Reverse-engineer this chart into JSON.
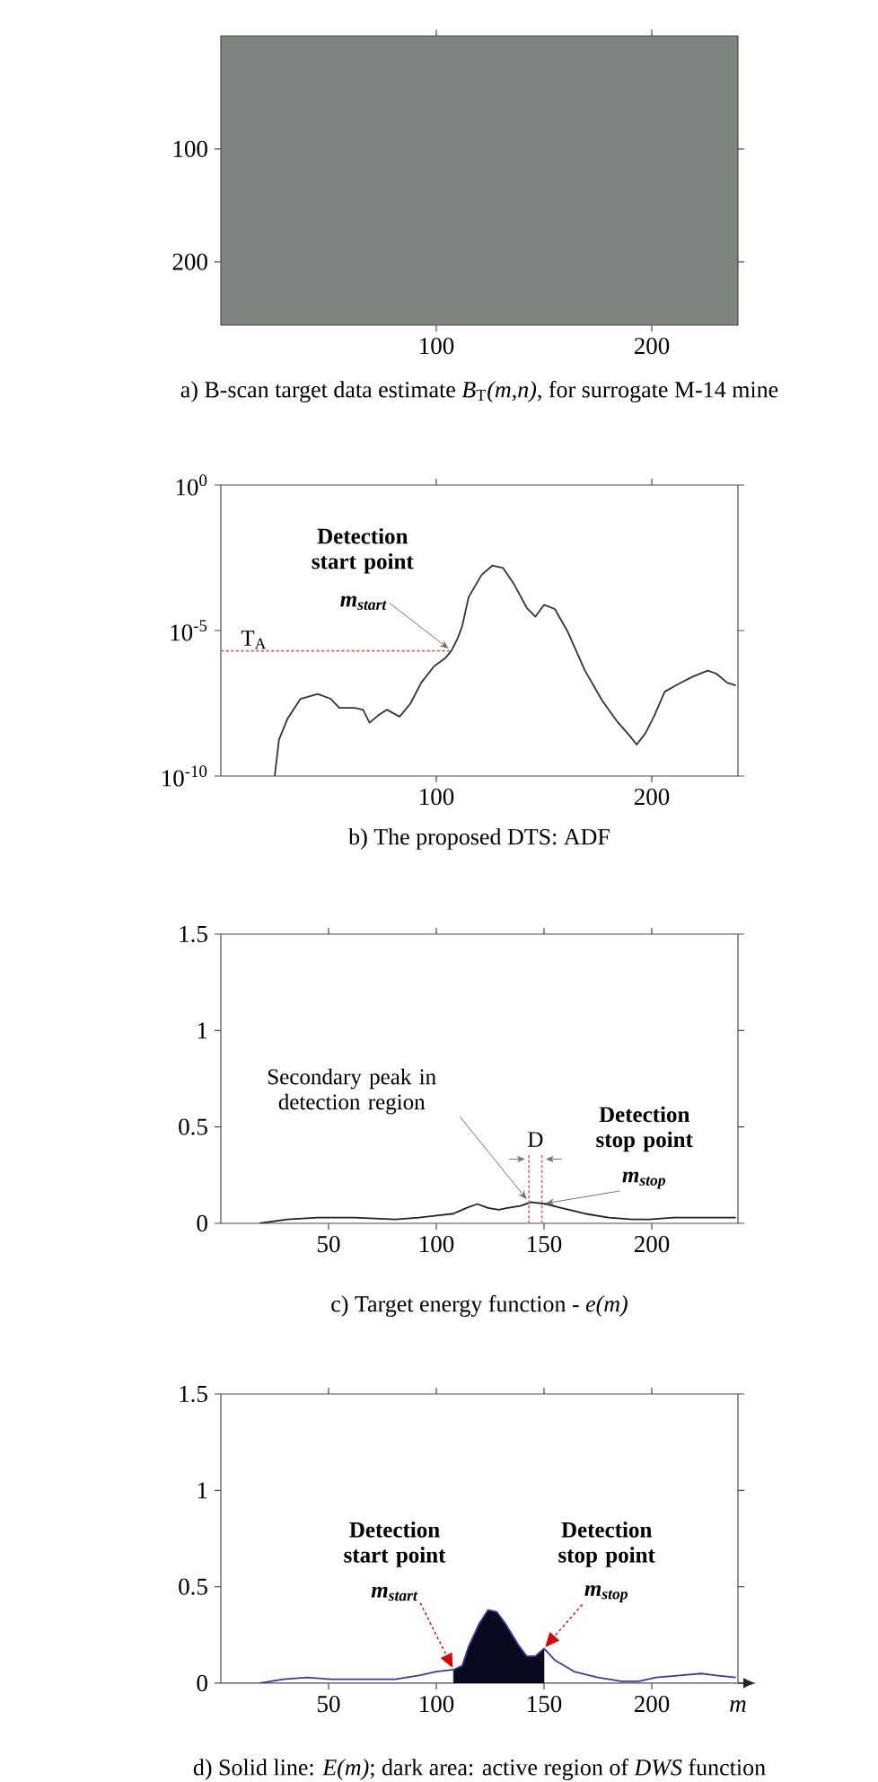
{
  "chart_data": [
    {
      "type": "line",
      "title": "a) B-scan target data estimate *B*$_{T}$*(m,n)*, for surrogate M-14 mine",
      "xlim": [
        0,
        240
      ],
      "ylim": [
        256,
        0
      ],
      "xticks": [
        100,
        200
      ],
      "yticks": [
        100,
        200
      ]
    },
    {
      "type": "line",
      "title": "b) The proposed DTS: ADF",
      "log": "y",
      "xlim": [
        0,
        240
      ],
      "ylim": [
        1e-10,
        1
      ],
      "xticks": [
        100,
        200
      ],
      "yticks": [
        {
          "value": 1,
          "label": "10$^{0}$"
        },
        {
          "value": 1e-05,
          "label": "10$^{-5}$"
        },
        {
          "value": 1e-10,
          "label": "10$^{-10}$"
        }
      ],
      "series": [
        {
          "color": "#333333",
          "x": [
            25,
            27,
            31,
            37,
            45,
            51,
            55,
            62,
            66,
            69,
            73,
            77,
            83,
            88,
            93,
            99,
            104,
            107,
            110,
            112,
            115,
            121,
            126,
            131,
            136,
            142,
            146,
            150,
            155,
            161,
            169,
            177,
            184,
            190,
            193,
            197,
            201,
            206,
            212,
            219,
            226,
            230,
            235,
            239
          ],
          "values": [
            1e-10,
            1.8e-09,
            9.5e-09,
            4.5e-08,
            6.6e-08,
            4.5e-08,
            2.2e-08,
            2.2e-08,
            1.9e-08,
            6.8e-09,
            1.2e-08,
            1.9e-08,
            1.1e-08,
            3.1e-08,
            1.6e-07,
            5.9e-07,
            1.1e-06,
            2e-06,
            5.6e-06,
            1.4e-05,
            0.00014,
            0.00081,
            0.0017,
            0.0014,
            0.0004,
            6e-05,
            3e-05,
            7.6e-05,
            5.5e-05,
            9.1e-06,
            4.2e-07,
            3.9e-08,
            7.4e-09,
            2.3e-09,
            1.2e-09,
            2.9e-09,
            1.1e-08,
            7.9e-08,
            1.4e-07,
            2.6e-07,
            4.2e-07,
            3.3e-07,
            1.6e-07,
            1.3e-07
          ]
        },
        {
          "name": "T$_{A}$",
          "color": "#cc6666",
          "line_style": "dotted",
          "x": [
            0,
            107
          ],
          "values": [
            2e-06,
            2e-06
          ]
        }
      ],
      "annotations": [
        "Detection start point",
        {
          "text": "m$_{start}$",
          "x": 107,
          "y": 2e-06
        }
      ]
    },
    {
      "type": "line",
      "title": "c) Target energy function - *e(m)*",
      "xlim": [
        0,
        240
      ],
      "ylim": [
        0,
        1.5
      ],
      "xticks": [
        50,
        100,
        150,
        200
      ],
      "yticks": [
        0,
        0.5,
        1,
        1.5
      ],
      "series": [
        {
          "color": "#222222",
          "x": [
            18,
            31,
            45,
            62,
            81,
            92,
            100,
            108,
            114,
            119,
            124,
            129,
            133,
            139,
            144,
            151,
            158,
            169,
            180,
            191,
            199,
            210,
            222,
            239
          ],
          "values": [
            0,
            0.02,
            0.03,
            0.03,
            0.02,
            0.03,
            0.04,
            0.05,
            0.08,
            0.1,
            0.08,
            0.07,
            0.08,
            0.09,
            0.11,
            0.1,
            0.08,
            0.05,
            0.03,
            0.02,
            0.02,
            0.03,
            0.03,
            0.03
          ]
        }
      ],
      "ref_lines": [
        {
          "axis": "x",
          "value": 143,
          "color": "#d46a6a",
          "line_style": "dotted"
        },
        {
          "axis": "x",
          "value": 149,
          "color": "#d46a6a",
          "line_style": "dotted"
        }
      ],
      "annotations": [
        {
          "text": "Secondary peak in detection region",
          "x": 143,
          "y": 0.11
        },
        "D",
        "Detection stop point",
        {
          "text": "m$_{stop}$",
          "x": 149,
          "y": 0.1
        }
      ]
    },
    {
      "type": "line",
      "title": "d) Solid line: *E(m)*; dark area: active region of *DWS* function",
      "xlabel": "m",
      "xlim": [
        0,
        240
      ],
      "ylim": [
        0,
        1.5
      ],
      "xticks": [
        50,
        100,
        150,
        200
      ],
      "yticks": [
        0,
        0.5,
        1,
        1.5
      ],
      "series": [
        {
          "type": "area",
          "color": "#0a0a1e",
          "x": [
            108,
            112,
            115,
            120,
            124,
            128,
            132,
            138,
            142,
            146,
            150
          ],
          "values": [
            0.07,
            0.09,
            0.19,
            0.31,
            0.38,
            0.37,
            0.31,
            0.2,
            0.14,
            0.14,
            0.18
          ]
        },
        {
          "color": "#3b3b9e",
          "x": [
            18,
            29,
            40,
            51,
            65,
            81,
            92,
            100,
            108,
            112,
            115,
            120,
            124,
            128,
            132,
            138,
            142,
            146,
            150,
            155,
            164,
            175,
            186,
            194,
            202,
            213,
            223,
            230,
            239
          ],
          "values": [
            0,
            0.02,
            0.03,
            0.02,
            0.02,
            0.02,
            0.04,
            0.06,
            0.07,
            0.09,
            0.19,
            0.31,
            0.38,
            0.37,
            0.31,
            0.2,
            0.14,
            0.14,
            0.18,
            0.12,
            0.06,
            0.03,
            0.01,
            0.01,
            0.03,
            0.04,
            0.05,
            0.04,
            0.03
          ]
        }
      ],
      "annotations": [
        "Detection start point",
        {
          "text": "m$_{start}$",
          "x": 108,
          "y": 0.07
        },
        "Detection stop point",
        {
          "text": "m$_{stop}$",
          "x": 150,
          "y": 0.18
        }
      ]
    }
  ]
}
